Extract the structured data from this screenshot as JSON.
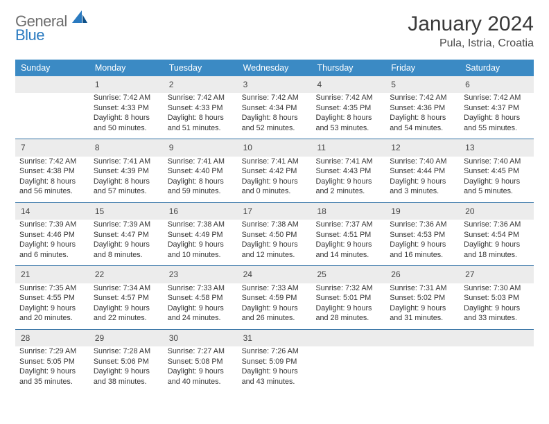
{
  "logo": {
    "word1": "General",
    "word2": "Blue"
  },
  "title": "January 2024",
  "location": "Pula, Istria, Croatia",
  "colors": {
    "header_bg": "#3b8ac4",
    "header_text": "#ffffff",
    "daynum_bg": "#ececec",
    "row_border": "#2f6fa3",
    "text": "#333333",
    "title_color": "#3a3a3a",
    "logo_gray": "#6d6d6d",
    "logo_blue": "#2a7ac0"
  },
  "dayNames": [
    "Sunday",
    "Monday",
    "Tuesday",
    "Wednesday",
    "Thursday",
    "Friday",
    "Saturday"
  ],
  "startOffset": 1,
  "daysInMonth": 31,
  "days": {
    "1": {
      "rise": "7:42 AM",
      "set": "4:33 PM",
      "dl": "8 hours and 50 minutes."
    },
    "2": {
      "rise": "7:42 AM",
      "set": "4:33 PM",
      "dl": "8 hours and 51 minutes."
    },
    "3": {
      "rise": "7:42 AM",
      "set": "4:34 PM",
      "dl": "8 hours and 52 minutes."
    },
    "4": {
      "rise": "7:42 AM",
      "set": "4:35 PM",
      "dl": "8 hours and 53 minutes."
    },
    "5": {
      "rise": "7:42 AM",
      "set": "4:36 PM",
      "dl": "8 hours and 54 minutes."
    },
    "6": {
      "rise": "7:42 AM",
      "set": "4:37 PM",
      "dl": "8 hours and 55 minutes."
    },
    "7": {
      "rise": "7:42 AM",
      "set": "4:38 PM",
      "dl": "8 hours and 56 minutes."
    },
    "8": {
      "rise": "7:41 AM",
      "set": "4:39 PM",
      "dl": "8 hours and 57 minutes."
    },
    "9": {
      "rise": "7:41 AM",
      "set": "4:40 PM",
      "dl": "8 hours and 59 minutes."
    },
    "10": {
      "rise": "7:41 AM",
      "set": "4:42 PM",
      "dl": "9 hours and 0 minutes."
    },
    "11": {
      "rise": "7:41 AM",
      "set": "4:43 PM",
      "dl": "9 hours and 2 minutes."
    },
    "12": {
      "rise": "7:40 AM",
      "set": "4:44 PM",
      "dl": "9 hours and 3 minutes."
    },
    "13": {
      "rise": "7:40 AM",
      "set": "4:45 PM",
      "dl": "9 hours and 5 minutes."
    },
    "14": {
      "rise": "7:39 AM",
      "set": "4:46 PM",
      "dl": "9 hours and 6 minutes."
    },
    "15": {
      "rise": "7:39 AM",
      "set": "4:47 PM",
      "dl": "9 hours and 8 minutes."
    },
    "16": {
      "rise": "7:38 AM",
      "set": "4:49 PM",
      "dl": "9 hours and 10 minutes."
    },
    "17": {
      "rise": "7:38 AM",
      "set": "4:50 PM",
      "dl": "9 hours and 12 minutes."
    },
    "18": {
      "rise": "7:37 AM",
      "set": "4:51 PM",
      "dl": "9 hours and 14 minutes."
    },
    "19": {
      "rise": "7:36 AM",
      "set": "4:53 PM",
      "dl": "9 hours and 16 minutes."
    },
    "20": {
      "rise": "7:36 AM",
      "set": "4:54 PM",
      "dl": "9 hours and 18 minutes."
    },
    "21": {
      "rise": "7:35 AM",
      "set": "4:55 PM",
      "dl": "9 hours and 20 minutes."
    },
    "22": {
      "rise": "7:34 AM",
      "set": "4:57 PM",
      "dl": "9 hours and 22 minutes."
    },
    "23": {
      "rise": "7:33 AM",
      "set": "4:58 PM",
      "dl": "9 hours and 24 minutes."
    },
    "24": {
      "rise": "7:33 AM",
      "set": "4:59 PM",
      "dl": "9 hours and 26 minutes."
    },
    "25": {
      "rise": "7:32 AM",
      "set": "5:01 PM",
      "dl": "9 hours and 28 minutes."
    },
    "26": {
      "rise": "7:31 AM",
      "set": "5:02 PM",
      "dl": "9 hours and 31 minutes."
    },
    "27": {
      "rise": "7:30 AM",
      "set": "5:03 PM",
      "dl": "9 hours and 33 minutes."
    },
    "28": {
      "rise": "7:29 AM",
      "set": "5:05 PM",
      "dl": "9 hours and 35 minutes."
    },
    "29": {
      "rise": "7:28 AM",
      "set": "5:06 PM",
      "dl": "9 hours and 38 minutes."
    },
    "30": {
      "rise": "7:27 AM",
      "set": "5:08 PM",
      "dl": "9 hours and 40 minutes."
    },
    "31": {
      "rise": "7:26 AM",
      "set": "5:09 PM",
      "dl": "9 hours and 43 minutes."
    }
  },
  "labels": {
    "sunrise": "Sunrise:",
    "sunset": "Sunset:",
    "daylight": "Daylight:"
  }
}
